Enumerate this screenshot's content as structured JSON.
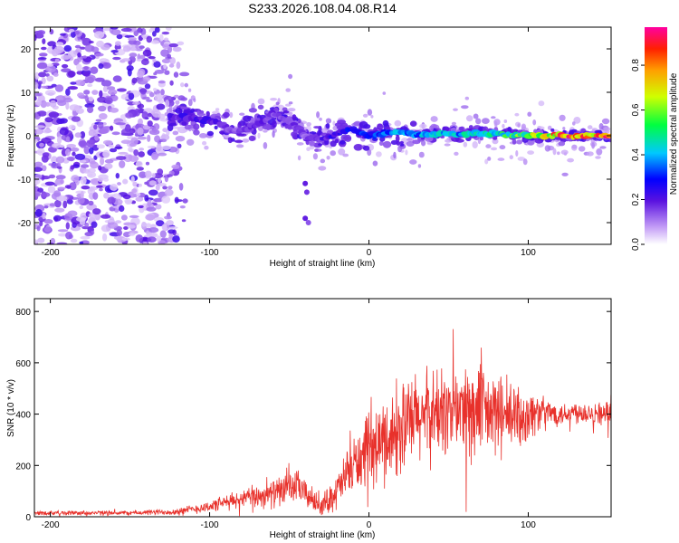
{
  "title": "S233.2026.108.04.08.R14",
  "colors": {
    "snr_line": "#e8312b",
    "axis": "#000000",
    "background": "#ffffff"
  },
  "chart_data": [
    {
      "type": "heatmap",
      "name": "spectrogram",
      "xlabel": "Height of straight line (km)",
      "ylabel": "Frequency (Hz)",
      "xlim": [
        -210,
        152
      ],
      "ylim": [
        -25,
        25
      ],
      "xticks": [
        -200,
        -100,
        0,
        100
      ],
      "yticks": [
        -20,
        -10,
        0,
        10,
        20
      ],
      "colorbar": {
        "label": "Normalized spectral amplitude",
        "range": [
          0,
          0.97
        ],
        "ticks": [
          "0.0",
          "0.2",
          "0.4",
          "0.6",
          "0.8"
        ],
        "tick_values": [
          0,
          0.2,
          0.4,
          0.6,
          0.8
        ]
      },
      "ridge": {
        "description_points_x": [
          -125,
          -110,
          -95,
          -85,
          -70,
          -60,
          -50,
          -40,
          -30,
          -20,
          -10,
          0,
          10,
          20,
          30,
          40,
          60,
          80,
          100,
          120,
          150
        ],
        "frequency_hz": [
          4.5,
          4.0,
          3.0,
          1.0,
          2.5,
          5.0,
          3.5,
          0.0,
          -1.0,
          0.5,
          1.5,
          0.0,
          0.5,
          1.0,
          0.0,
          0.5,
          0.5,
          0.5,
          0.0,
          0.0,
          0.0
        ],
        "amplitude": [
          0.2,
          0.25,
          0.2,
          0.15,
          0.2,
          0.15,
          0.2,
          0.15,
          0.2,
          0.25,
          0.3,
          0.35,
          0.35,
          0.4,
          0.4,
          0.45,
          0.45,
          0.5,
          0.6,
          0.85,
          0.85
        ]
      }
    },
    {
      "type": "line",
      "name": "snr",
      "xlabel": "Height of straight line (km)",
      "ylabel": "SNR (10 * v/v)",
      "xlim": [
        -210,
        152
      ],
      "ylim": [
        0,
        850
      ],
      "xticks": [
        -200,
        -100,
        0,
        100
      ],
      "yticks": [
        0,
        200,
        400,
        600,
        800
      ],
      "envelope_x": [
        -210,
        -150,
        -120,
        -100,
        -80,
        -60,
        -45,
        -40,
        -30,
        -20,
        -10,
        0,
        10,
        20,
        30,
        40,
        50,
        60,
        70,
        80,
        90,
        100,
        110,
        120,
        130,
        152
      ],
      "envelope_mean": [
        15,
        15,
        20,
        40,
        70,
        90,
        120,
        90,
        40,
        100,
        200,
        250,
        300,
        340,
        380,
        400,
        410,
        420,
        400,
        400,
        380,
        400,
        410,
        400,
        410,
        400
      ],
      "envelope_spread": [
        10,
        10,
        15,
        25,
        40,
        60,
        70,
        60,
        40,
        80,
        120,
        150,
        180,
        200,
        200,
        200,
        190,
        200,
        200,
        180,
        160,
        120,
        60,
        50,
        50,
        50
      ]
    }
  ]
}
